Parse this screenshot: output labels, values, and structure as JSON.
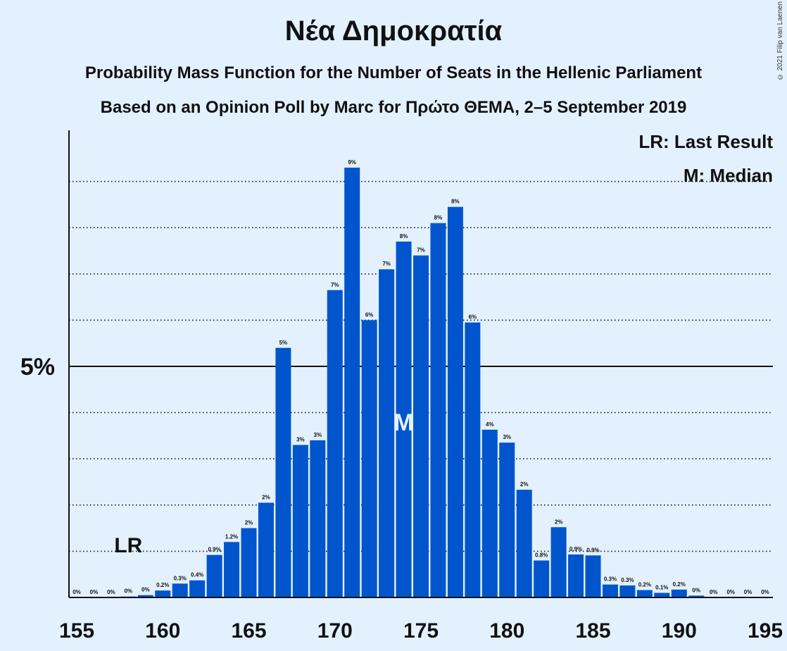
{
  "header": {
    "title": "Νέα Δημοκρατία",
    "subtitle_1": "Probability Mass Function for the Number of Seats in the Hellenic Parliament",
    "subtitle_2": "Based on an Opinion Poll by Marc for Πρώτο ΘΕΜΑ, 2–5 September 2019",
    "copyright": "© 2021 Filip van Laenen"
  },
  "legend": {
    "lr": "LR: Last Result",
    "median": "M: Median"
  },
  "colors": {
    "bar": "#0055cc",
    "background": "#e3f1ff",
    "median_mark": "#e3f1ff"
  },
  "chart_data": {
    "type": "bar",
    "x": [
      155,
      156,
      157,
      158,
      159,
      160,
      161,
      162,
      163,
      164,
      165,
      166,
      167,
      168,
      169,
      170,
      171,
      172,
      173,
      174,
      175,
      176,
      177,
      178,
      179,
      180,
      181,
      182,
      183,
      184,
      185,
      186,
      187,
      188,
      189,
      190,
      191,
      192,
      193,
      194,
      195
    ],
    "values": [
      0,
      0,
      0,
      0.02,
      0.05,
      0.15,
      0.3,
      0.37,
      0.92,
      1.2,
      1.5,
      2.05,
      5.4,
      3.3,
      3.4,
      6.65,
      9.3,
      6.0,
      7.1,
      7.7,
      7.4,
      8.1,
      8.45,
      5.95,
      3.63,
      3.35,
      2.33,
      0.8,
      1.52,
      0.93,
      0.91,
      0.28,
      0.26,
      0.16,
      0.1,
      0.17,
      0.04,
      0,
      0,
      0,
      0
    ],
    "labels": [
      "0%",
      "0%",
      "0%",
      "0%",
      "0%",
      "0.2%",
      "0.3%",
      "0.4%",
      "0.9%",
      "1.2%",
      "2%",
      "2%",
      "5%",
      "3%",
      "3%",
      "7%",
      "9%",
      "6%",
      "7%",
      "8%",
      "7%",
      "8%",
      "8%",
      "6%",
      "4%",
      "3%",
      "2%",
      "0.8%",
      "2%",
      "0.9%",
      "0.9%",
      "0.3%",
      "0.3%",
      "0.2%",
      "0.1%",
      "0.2%",
      "0%",
      "0%",
      "0%",
      "0%",
      "0%"
    ],
    "x_ticks": [
      155,
      160,
      165,
      170,
      175,
      180,
      185,
      190,
      195
    ],
    "y_tick_label": "5%",
    "y_tick_value": 5,
    "ylim": [
      0,
      10
    ],
    "grid": "dotted at 1% steps",
    "last_result_seat": 158,
    "last_result_label": "LR",
    "median_seat": 174,
    "median_label": "M"
  }
}
